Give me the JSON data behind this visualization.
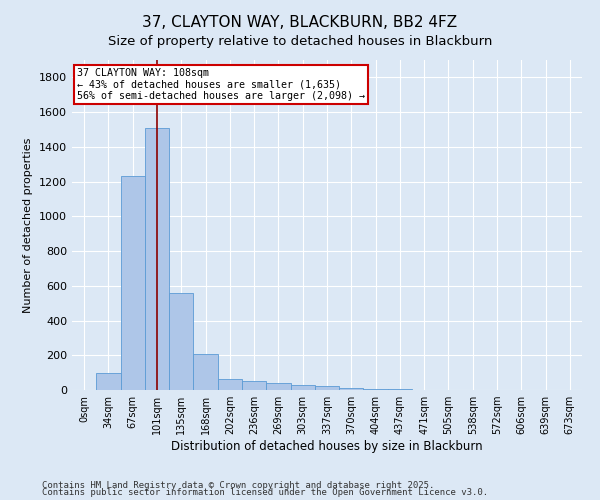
{
  "title1": "37, CLAYTON WAY, BLACKBURN, BB2 4FZ",
  "title2": "Size of property relative to detached houses in Blackburn",
  "xlabel": "Distribution of detached houses by size in Blackburn",
  "ylabel": "Number of detached properties",
  "bar_labels": [
    "0sqm",
    "34sqm",
    "67sqm",
    "101sqm",
    "135sqm",
    "168sqm",
    "202sqm",
    "236sqm",
    "269sqm",
    "303sqm",
    "337sqm",
    "370sqm",
    "404sqm",
    "437sqm",
    "471sqm",
    "505sqm",
    "538sqm",
    "572sqm",
    "606sqm",
    "639sqm",
    "673sqm"
  ],
  "bar_values": [
    0,
    100,
    1235,
    1510,
    560,
    210,
    65,
    50,
    40,
    30,
    25,
    10,
    5,
    3,
    2,
    1,
    1,
    0,
    0,
    0,
    0
  ],
  "bar_color": "#aec6e8",
  "bar_edge_color": "#5b9bd5",
  "bg_color": "#dce8f5",
  "grid_color": "#ffffff",
  "vline_x_idx": 3,
  "vline_color": "#8b0000",
  "annotation_text": "37 CLAYTON WAY: 108sqm\n← 43% of detached houses are smaller (1,635)\n56% of semi-detached houses are larger (2,098) →",
  "annotation_box_color": "#ffffff",
  "annotation_box_edge": "#cc0000",
  "ylim": [
    0,
    1900
  ],
  "yticks": [
    0,
    200,
    400,
    600,
    800,
    1000,
    1200,
    1400,
    1600,
    1800
  ],
  "footnote1": "Contains HM Land Registry data © Crown copyright and database right 2025.",
  "footnote2": "Contains public sector information licensed under the Open Government Licence v3.0.",
  "title1_fontsize": 11,
  "title2_fontsize": 9.5
}
